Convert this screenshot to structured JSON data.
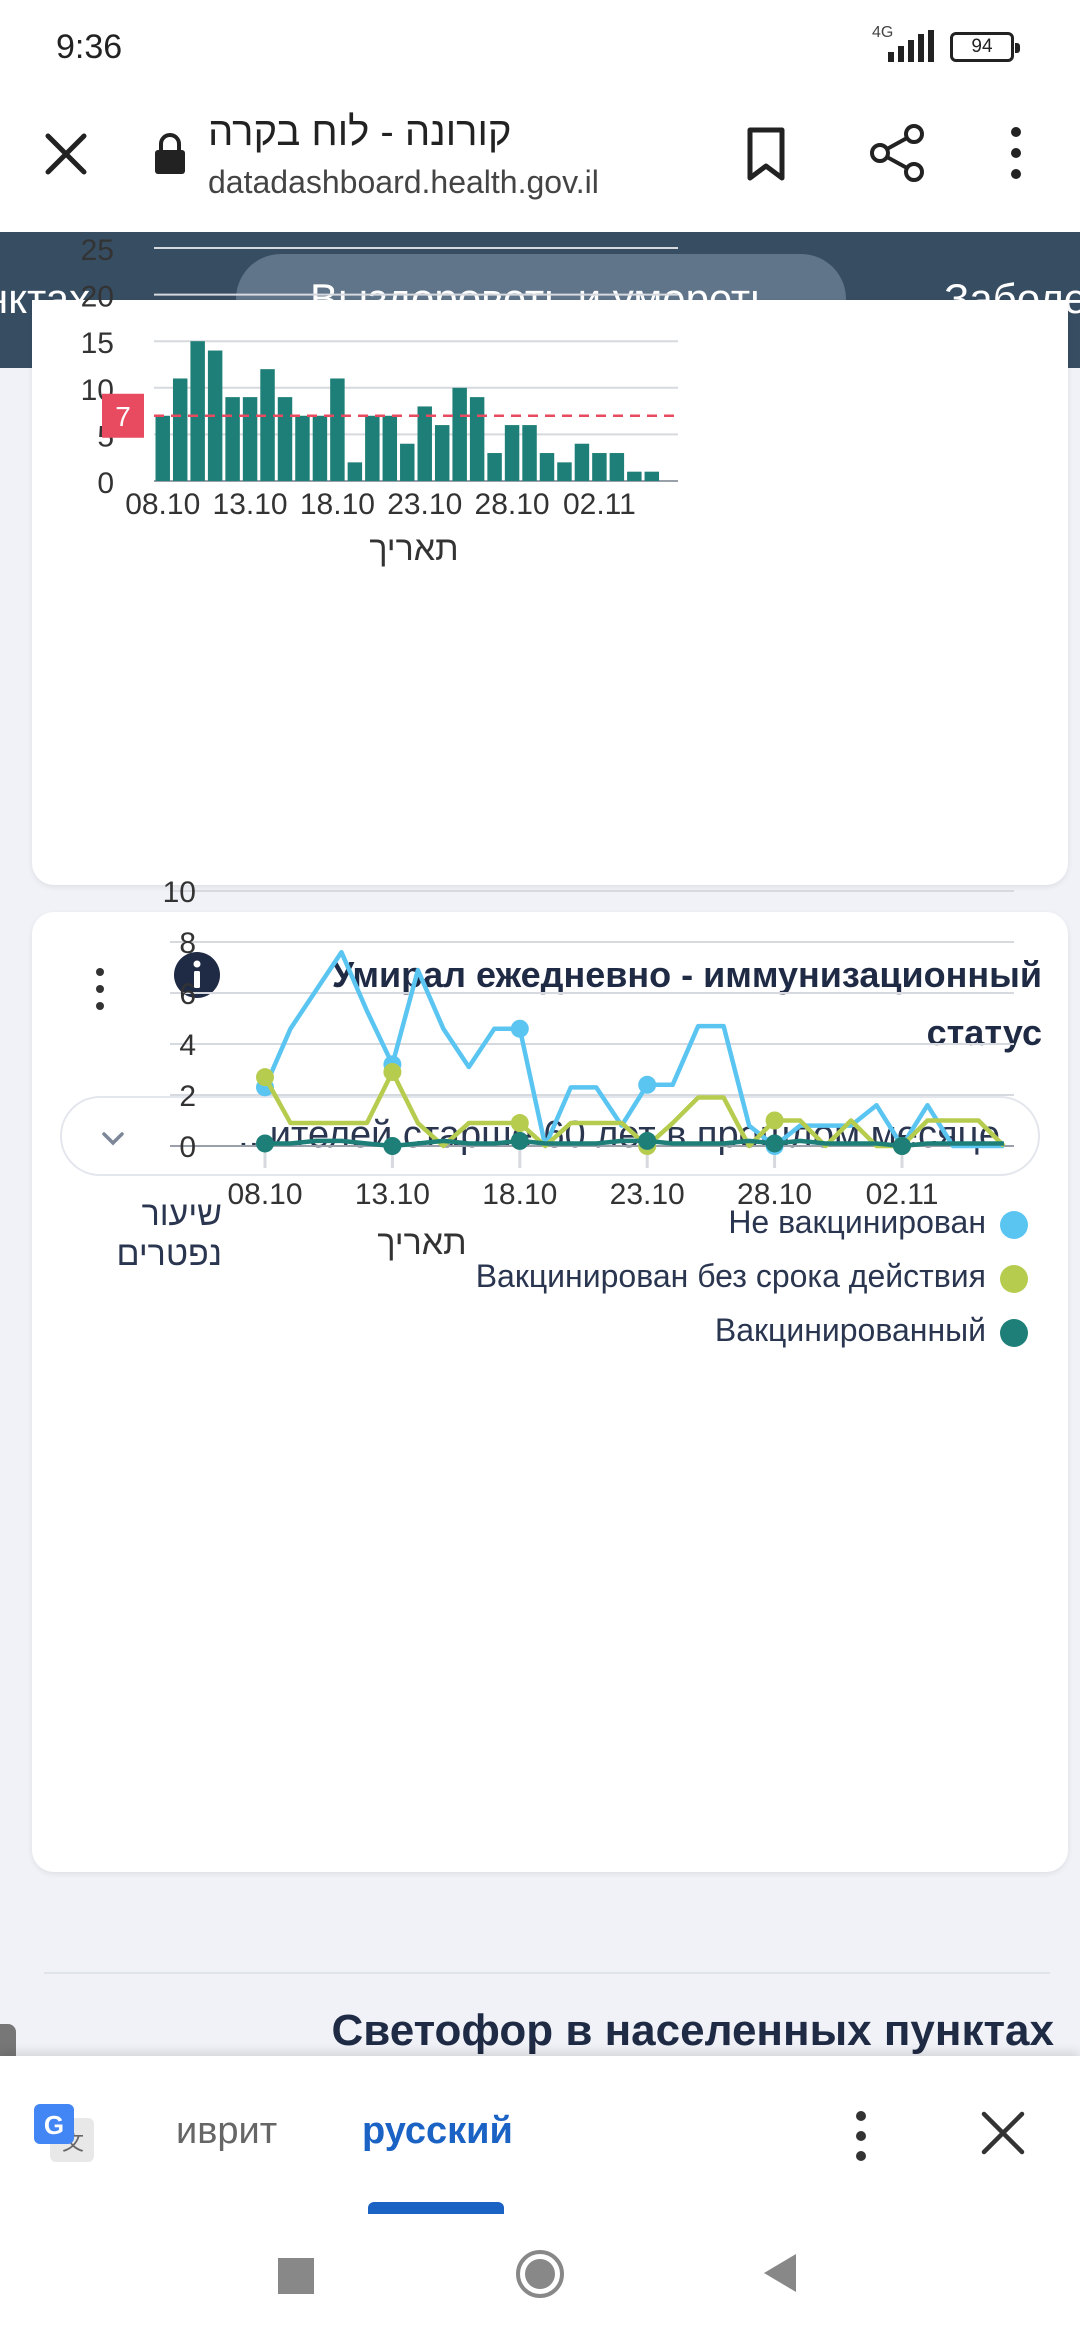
{
  "status_bar": {
    "time": "9:36",
    "network": "4G",
    "battery": "94"
  },
  "browser": {
    "page_title": "קורונה - לוח בקרה",
    "url": "datadashboard.health.gov.il"
  },
  "tabs": [
    {
      "label": "унктах"
    },
    {
      "label": "Выздороветь и умереть",
      "active": true
    },
    {
      "label": "Заболе"
    }
  ],
  "chart_data": [
    {
      "type": "bar",
      "title": "",
      "xlabel": "תאריך",
      "ylabel": "",
      "x": [
        "08.10",
        "09.10",
        "10.10",
        "11.10",
        "12.10",
        "13.10",
        "14.10",
        "15.10",
        "16.10",
        "17.10",
        "18.10",
        "19.10",
        "20.10",
        "21.10",
        "22.10",
        "23.10",
        "24.10",
        "25.10",
        "26.10",
        "27.10",
        "28.10",
        "29.10",
        "30.10",
        "31.10",
        "01.11",
        "02.11",
        "03.11",
        "04.11",
        "05.11",
        "06.11"
      ],
      "values": [
        7,
        11,
        15,
        14,
        9,
        9,
        12,
        9,
        7,
        7,
        11,
        2,
        7,
        7,
        4,
        8,
        6,
        10,
        9,
        3,
        6,
        6,
        3,
        2,
        4,
        3,
        3,
        1,
        1,
        0
      ],
      "x_ticks": [
        "08.10",
        "13.10",
        "18.10",
        "23.10",
        "28.10",
        "02.11"
      ],
      "y_ticks": [
        0,
        5,
        10,
        15,
        20,
        25
      ],
      "y_tick_labels": [
        "0",
        "5",
        "10",
        "15",
        "20",
        "25"
      ],
      "ylim": [
        0,
        25
      ],
      "reference_line": {
        "value": 7,
        "label": "7",
        "color": "#e84a5f"
      },
      "bar_color": "#1e7f78",
      "grid": true
    },
    {
      "type": "line",
      "title": "Умирал ежедневно - иммунизационный статус",
      "xlabel": "תאריך",
      "ylabel": "שיעור נפטרים",
      "x": [
        "08.10",
        "09.10",
        "10.10",
        "11.10",
        "12.10",
        "13.10",
        "14.10",
        "15.10",
        "16.10",
        "17.10",
        "18.10",
        "19.10",
        "20.10",
        "21.10",
        "22.10",
        "23.10",
        "24.10",
        "25.10",
        "26.10",
        "27.10",
        "28.10",
        "29.10",
        "30.10",
        "31.10",
        "01.11",
        "02.11",
        "03.11",
        "04.11",
        "05.11",
        "06.11"
      ],
      "x_ticks": [
        "08.10",
        "13.10",
        "18.10",
        "23.10",
        "28.10",
        "02.11"
      ],
      "y_ticks": [
        0,
        2,
        4,
        6,
        8,
        10
      ],
      "y_tick_labels": [
        "0",
        "2",
        "4",
        "6",
        "8",
        "10"
      ],
      "ylim": [
        0,
        10
      ],
      "legend_position": "top-right",
      "series": [
        {
          "name": "Не вакцинирован",
          "color": "#5bc5f2",
          "values": [
            2.3,
            4.6,
            6.1,
            7.6,
            5.3,
            3.2,
            6.9,
            4.6,
            3.1,
            4.6,
            4.6,
            0,
            2.3,
            2.3,
            0.8,
            2.4,
            2.4,
            4.7,
            4.7,
            0.8,
            0,
            0.8,
            0.8,
            0.8,
            1.6,
            0,
            1.6,
            0,
            0,
            0
          ]
        },
        {
          "name": "Вакцинирован без срока действия",
          "color": "#b5cc4f",
          "values": [
            2.7,
            0.9,
            0.9,
            0.9,
            0.9,
            2.9,
            0.9,
            0,
            0.9,
            0.9,
            0.9,
            0,
            0.9,
            0.9,
            0.9,
            0,
            0.9,
            1.9,
            1.9,
            0,
            1.0,
            1.0,
            0,
            1.0,
            0,
            0,
            1.0,
            1.0,
            1.0,
            0
          ]
        },
        {
          "name": "Вакцинированный",
          "color": "#1e7f78",
          "values": [
            0.1,
            0.1,
            0.2,
            0.2,
            0.1,
            0,
            0.1,
            0.2,
            0.1,
            0.1,
            0.2,
            0.1,
            0.1,
            0.1,
            0.2,
            0.2,
            0.1,
            0.1,
            0.1,
            0.2,
            0.1,
            0.2,
            0.1,
            0.1,
            0.1,
            0,
            0.1,
            0.1,
            0.1,
            0.1
          ]
        }
      ],
      "grid": true
    }
  ],
  "card2": {
    "filter_value": "...ителей старше 60 лет в прошлом месяце"
  },
  "section": {
    "title": "Светофор в населенных пунктах"
  },
  "translate_bar": {
    "source_lang": "иврит",
    "target_lang": "русский"
  }
}
